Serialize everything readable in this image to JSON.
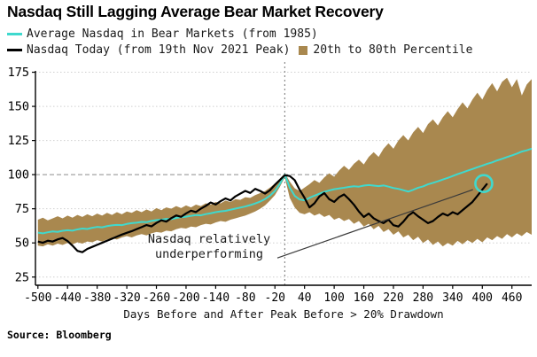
{
  "title": "Nasdaq Still Lagging Average Bear Market Recovery",
  "legend": {
    "items": [
      {
        "label": "Average Nasdaq in Bear Markets (from 1985)",
        "swatch": "line",
        "color": "#3FD9CE"
      },
      {
        "label": "Nasdaq Today (from 19th Nov 2021 Peak)",
        "swatch": "line",
        "color": "#000000"
      },
      {
        "label": "20th to 80th Percentile",
        "swatch": "square",
        "color": "#A9884F"
      }
    ]
  },
  "annotation": {
    "lines": [
      "Nasdaq relatively",
      "underperforming"
    ]
  },
  "source": "Source: Bloomberg",
  "chart_data": {
    "type": "line",
    "title": "Nasdaq Still Lagging Average Bear Market Recovery",
    "xlabel": "Days Before and After Peak Before > 20% Drawdown",
    "ylabel": "",
    "xlim": [
      -505,
      500
    ],
    "ylim": [
      19,
      176
    ],
    "x_ticks": [
      -500,
      -440,
      -380,
      -320,
      -260,
      -200,
      -140,
      -80,
      -20,
      40,
      100,
      160,
      220,
      280,
      340,
      400,
      460
    ],
    "y_ticks": [
      25,
      50,
      75,
      100,
      125,
      150,
      175
    ],
    "grid": true,
    "ref_line": 100,
    "peak_vline": 0,
    "legend_position": "top-left",
    "band": {
      "name": "20th to 80th Percentile",
      "color": "#A9884F",
      "x0": -500,
      "dx": 10,
      "lower": [
        48.0,
        47.5,
        49.0,
        48.0,
        49.5,
        48.5,
        50.0,
        49.0,
        50.5,
        49.5,
        51.0,
        50.5,
        52.0,
        51.0,
        52.5,
        53.5,
        52.5,
        54.0,
        55.0,
        54.0,
        55.5,
        56.5,
        55.5,
        57.0,
        58.0,
        57.5,
        59.0,
        58.5,
        60.0,
        61.0,
        60.5,
        62.0,
        61.5,
        63.0,
        64.0,
        63.5,
        65.0,
        66.0,
        65.5,
        67.0,
        68.0,
        69.0,
        70.0,
        71.5,
        73.0,
        75.0,
        77.5,
        81.0,
        85.0,
        91.0,
        98.0,
        83.0,
        76.0,
        72.0,
        71.0,
        72.5,
        70.0,
        71.5,
        69.0,
        70.5,
        67.0,
        68.5,
        66.0,
        67.5,
        64.0,
        66.0,
        62.0,
        64.0,
        60.0,
        62.5,
        58.0,
        60.0,
        56.0,
        58.5,
        54.0,
        56.0,
        52.0,
        54.5,
        50.0,
        52.5,
        48.5,
        51.0,
        47.5,
        50.0,
        48.0,
        51.5,
        49.0,
        52.0,
        50.0,
        53.0,
        50.5,
        54.0,
        52.0,
        55.0,
        53.0,
        56.5,
        54.0,
        57.0,
        55.0,
        58.0,
        56.0
      ],
      "upper": [
        67.0,
        68.5,
        66.5,
        68.0,
        69.5,
        68.0,
        70.0,
        68.5,
        70.5,
        69.0,
        71.0,
        69.5,
        71.5,
        70.0,
        72.0,
        70.5,
        72.5,
        71.0,
        73.0,
        72.0,
        74.0,
        72.5,
        74.5,
        73.0,
        75.5,
        74.0,
        76.0,
        75.0,
        77.0,
        75.5,
        77.5,
        76.0,
        78.0,
        77.0,
        79.0,
        78.0,
        80.0,
        79.0,
        81.0,
        80.0,
        82.0,
        81.5,
        83.5,
        83.0,
        85.0,
        86.5,
        88.0,
        90.5,
        93.5,
        97.0,
        101.0,
        95.0,
        90.0,
        88.0,
        90.5,
        93.0,
        96.0,
        94.0,
        98.0,
        101.0,
        98.5,
        103.0,
        106.5,
        103.5,
        108.0,
        111.0,
        107.5,
        113.0,
        116.5,
        113.0,
        119.0,
        123.0,
        119.0,
        125.0,
        129.0,
        125.0,
        131.0,
        135.0,
        130.5,
        137.0,
        140.5,
        136.0,
        142.0,
        146.5,
        142.0,
        148.0,
        153.0,
        148.5,
        155.0,
        160.0,
        155.0,
        162.0,
        167.0,
        161.0,
        168.0,
        171.0,
        164.0,
        170.0,
        158.0,
        166.0,
        170.0
      ]
    },
    "series": [
      {
        "name": "Average Nasdaq in Bear Markets (from 1985)",
        "color": "#3FD9CE",
        "width": 2,
        "x0": -500,
        "dx": 10,
        "values": [
          57.5,
          57.0,
          57.8,
          58.4,
          58.1,
          58.9,
          59.3,
          59.0,
          59.9,
          60.5,
          60.2,
          61.1,
          61.7,
          61.4,
          62.3,
          62.9,
          63.2,
          63.0,
          63.9,
          64.5,
          64.8,
          65.4,
          65.2,
          66.1,
          66.7,
          67.0,
          67.6,
          67.4,
          68.3,
          68.9,
          69.2,
          69.8,
          70.4,
          70.2,
          71.1,
          71.7,
          72.5,
          73.1,
          73.5,
          74.3,
          75.1,
          75.9,
          76.7,
          77.7,
          78.9,
          80.3,
          82.1,
          84.6,
          88.0,
          93.2,
          100.0,
          90.5,
          84.5,
          81.8,
          81.2,
          83.0,
          84.6,
          86.0,
          87.4,
          88.4,
          89.3,
          89.9,
          90.4,
          91.0,
          91.5,
          91.2,
          92.0,
          92.4,
          92.0,
          91.6,
          92.1,
          91.2,
          90.2,
          89.6,
          88.6,
          87.6,
          88.9,
          90.4,
          91.4,
          92.9,
          94.0,
          95.1,
          96.4,
          97.6,
          99.0,
          100.4,
          101.6,
          102.9,
          104.1,
          105.4,
          106.6,
          107.9,
          109.0,
          110.4,
          111.6,
          112.9,
          114.1,
          115.4,
          116.9,
          117.8,
          119.0
        ]
      },
      {
        "name": "Nasdaq Today (from 19th Nov 2021 Peak)",
        "color": "#000000",
        "width": 2.2,
        "x0": -500,
        "dx": 10,
        "values": [
          51.0,
          50.1,
          51.6,
          51.0,
          52.6,
          53.6,
          51.4,
          48.0,
          44.2,
          43.2,
          45.6,
          47.1,
          48.6,
          50.1,
          51.6,
          53.1,
          54.6,
          56.1,
          57.4,
          58.6,
          60.1,
          61.6,
          63.1,
          62.1,
          64.6,
          66.6,
          65.6,
          68.1,
          70.1,
          69.1,
          71.6,
          73.6,
          72.6,
          75.1,
          77.1,
          79.6,
          78.1,
          80.6,
          82.6,
          81.1,
          84.1,
          86.1,
          88.1,
          86.6,
          89.6,
          88.1,
          86.1,
          88.6,
          92.6,
          96.1,
          99.6,
          99.0,
          96.0,
          89.0,
          83.0,
          76.0,
          79.0,
          84.0,
          86.5,
          82.0,
          80.0,
          83.5,
          85.5,
          82.0,
          78.0,
          73.0,
          69.0,
          71.5,
          68.0,
          66.0,
          64.5,
          67.0,
          63.0,
          62.0,
          65.5,
          70.0,
          72.5,
          69.5,
          67.0,
          64.5,
          66.0,
          69.0,
          71.5,
          70.0,
          72.5,
          71.0,
          74.0,
          77.0,
          80.0,
          84.5,
          89.0,
          93.5
        ]
      }
    ],
    "marker": {
      "x": 403,
      "y": 93.5,
      "r": 9.5,
      "color": "#3FD9CE"
    },
    "leader_line": {
      "x1": -15,
      "y1": 39,
      "x2": 381,
      "y2": 89
    }
  }
}
